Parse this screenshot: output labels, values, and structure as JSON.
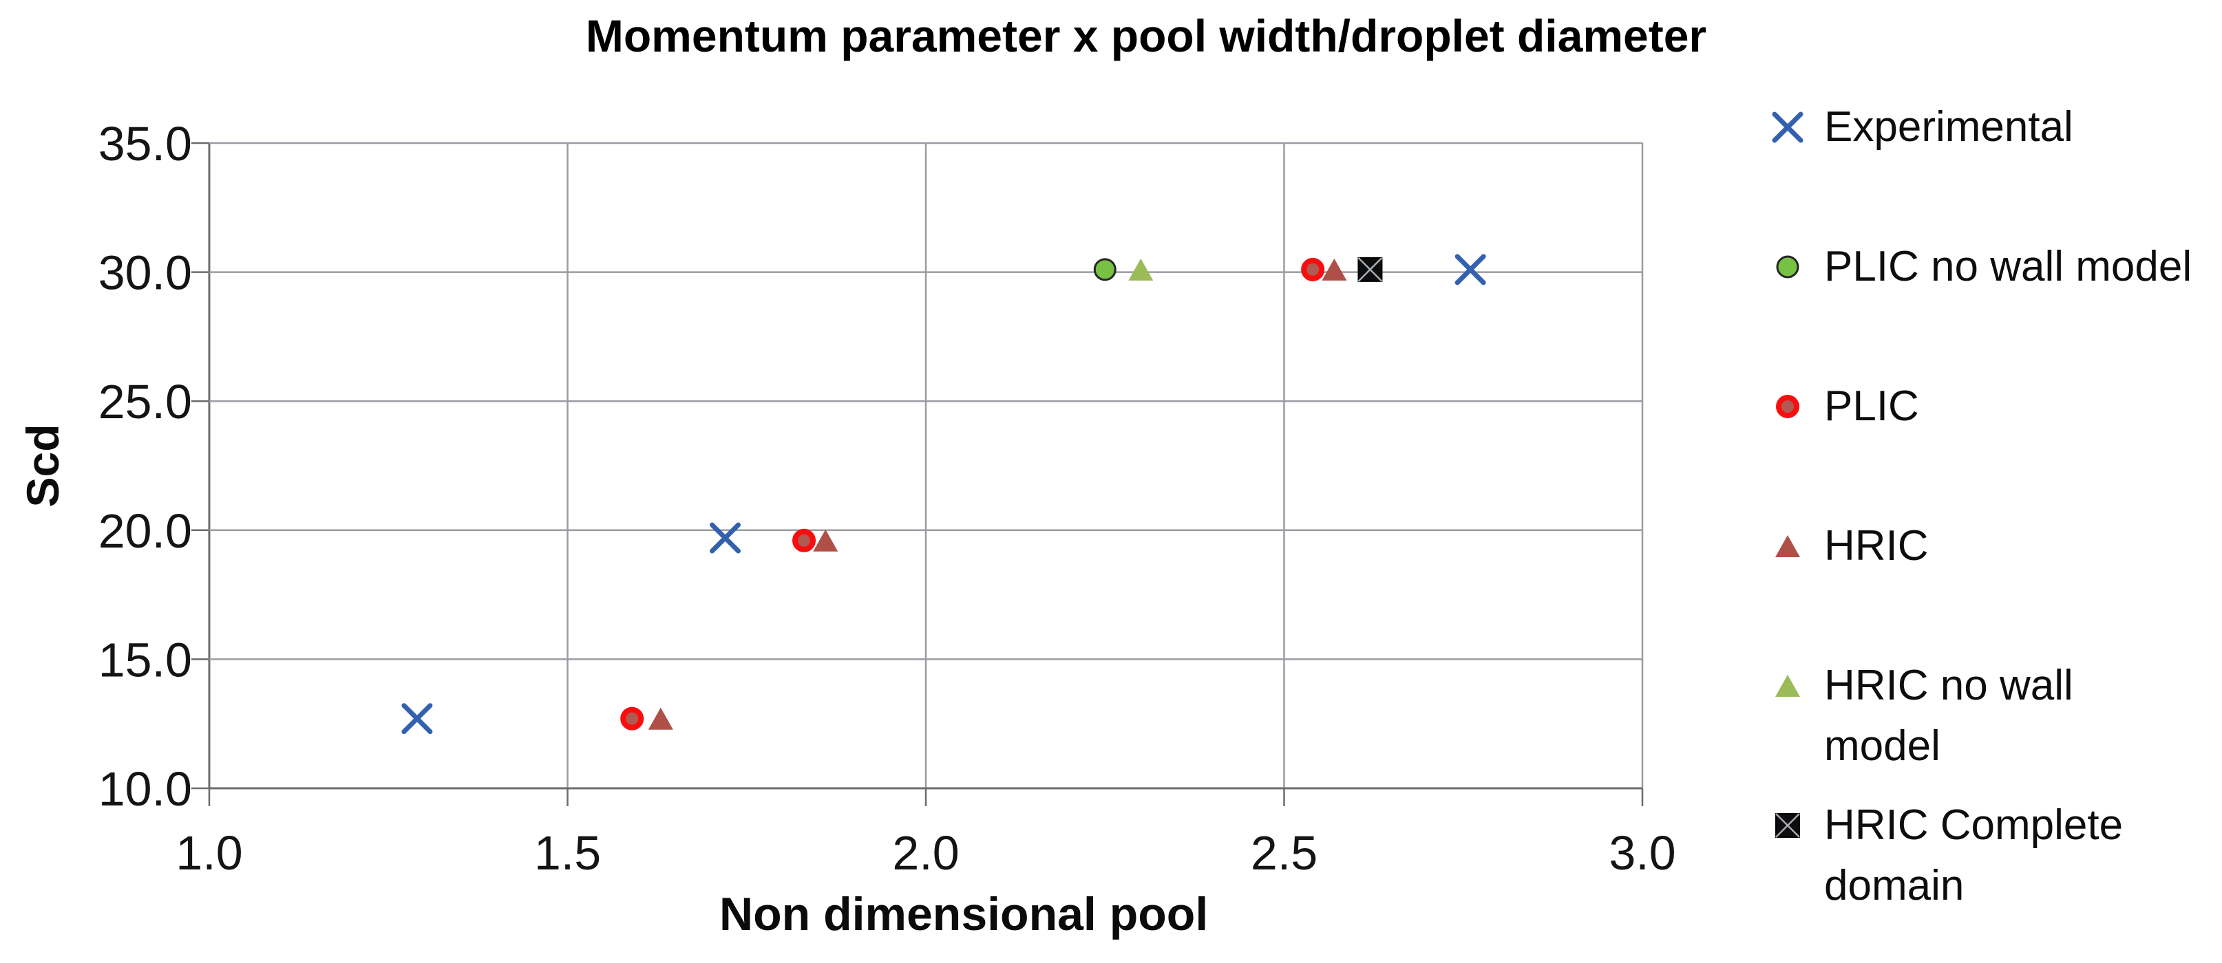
{
  "page": {
    "background": "#FFFFFF"
  },
  "colors": {
    "grid": "#9B9BA2",
    "axis": "#6C6C6C",
    "tick_text": "#141414",
    "title_text": "#000000"
  },
  "chart_data": {
    "type": "scatter",
    "title": "Momentum parameter x pool width/droplet diameter",
    "xlabel": "Non dimensional pool",
    "ylabel": "Scd",
    "xlim": [
      1.0,
      3.0
    ],
    "ylim": [
      10.0,
      35.0
    ],
    "x_ticks": [
      "1.0",
      "1.5",
      "2.0",
      "2.5",
      "3.0"
    ],
    "y_ticks": [
      "10.0",
      "15.0",
      "20.0",
      "25.0",
      "30.0",
      "35.0"
    ],
    "grid": true,
    "legend_position": "right",
    "series": [
      {
        "name": "Experimental",
        "marker": "x",
        "color": "#3461AE",
        "size": 19,
        "stroke_width": 7,
        "points": [
          [
            1.29,
            12.7
          ],
          [
            1.72,
            19.7
          ],
          [
            2.76,
            30.1
          ]
        ]
      },
      {
        "name": "PLIC no wall model",
        "marker": "circle",
        "fill": "#77C143",
        "stroke": "#262626",
        "stroke_width": 3,
        "size": 15,
        "points": [
          [
            2.25,
            30.1
          ]
        ]
      },
      {
        "name": "PLIC",
        "marker": "circle",
        "fill": "#B05A52",
        "stroke": "#F80E0E",
        "stroke_width": 8,
        "size": 13,
        "points": [
          [
            1.59,
            12.7
          ],
          [
            1.83,
            19.6
          ],
          [
            2.54,
            30.1
          ]
        ]
      },
      {
        "name": "HRIC",
        "marker": "triangle",
        "fill": "#AF5048",
        "size": 17,
        "points": [
          [
            1.63,
            12.7
          ],
          [
            1.86,
            19.6
          ],
          [
            2.57,
            30.1
          ]
        ]
      },
      {
        "name": "HRIC no wall model",
        "marker": "triangle",
        "fill": "#9BBB59",
        "size": 17,
        "points": [
          [
            2.3,
            30.1
          ]
        ]
      },
      {
        "name": "HRIC Complete domain",
        "marker": "square-x",
        "fill": "#0D0D0D",
        "stroke": "#000000",
        "cross": "#A8ACB4",
        "size": 17,
        "points": [
          [
            2.62,
            30.1
          ]
        ]
      }
    ]
  }
}
